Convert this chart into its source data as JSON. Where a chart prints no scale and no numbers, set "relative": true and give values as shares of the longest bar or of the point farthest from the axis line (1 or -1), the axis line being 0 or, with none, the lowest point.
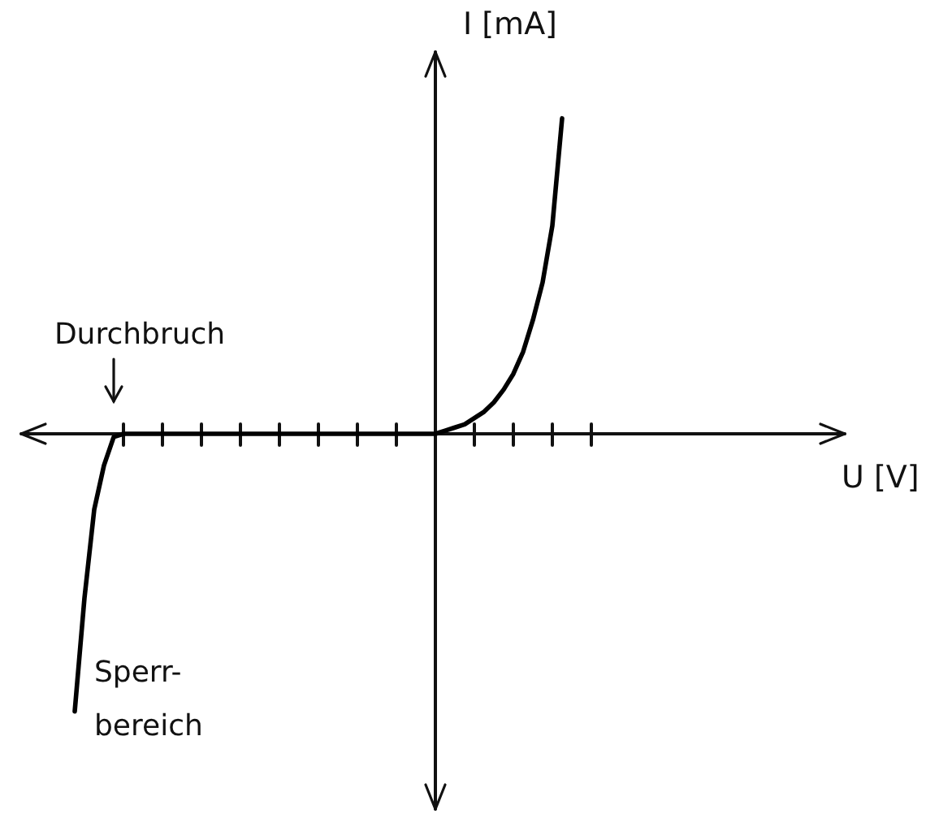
{
  "chart_data": {
    "type": "line",
    "xlabel": "U [V]",
    "ylabel": "I [mA]",
    "categories": [
      null,
      null,
      null,
      null,
      null,
      null,
      null,
      null,
      null,
      null,
      null,
      null,
      null,
      null,
      null,
      null,
      null,
      null,
      null,
      null,
      null,
      null,
      null,
      null,
      null,
      null,
      null,
      null,
      null,
      null,
      null,
      null,
      null,
      null,
      null,
      null,
      null,
      null,
      null,
      null,
      null,
      null,
      null,
      null,
      null,
      null,
      null,
      null,
      null,
      null,
      null,
      null,
      null,
      null,
      null,
      null,
      null,
      null,
      null,
      null,
      null,
      null,
      null,
      null,
      null,
      null,
      null,
      null,
      null,
      null,
      null,
      null,
      null,
      null,
      null,
      null,
      null,
      null,
      null,
      null,
      null,
      null,
      null,
      null,
      null
    ],
    "values": [
      null,
      null,
      null,
      null,
      null,
      -0.88,
      -0.52,
      -0.24,
      -0.1,
      -0.01,
      0,
      0,
      0,
      0,
      0,
      0,
      0,
      0,
      0,
      0,
      0,
      0,
      0,
      0,
      0,
      0,
      0,
      0,
      0,
      0,
      0,
      0,
      0,
      0,
      0,
      0,
      0,
      0,
      0,
      0,
      0,
      0,
      0,
      0.01,
      0.02,
      0.03,
      0.05,
      0.07,
      0.1,
      0.14,
      0.19,
      0.26,
      0.36,
      0.48,
      0.66,
      1,
      null,
      null,
      null,
      null,
      null,
      null,
      null,
      null,
      null,
      null,
      null,
      null,
      null,
      null,
      null,
      null,
      null,
      null,
      null,
      null,
      null,
      null,
      null,
      null,
      null,
      null,
      null,
      null,
      null
    ],
    "color": "#000000",
    "relative": true,
    "marker": "none",
    "line_style": "solid",
    "grid": false,
    "legend": false,
    "annotations": [
      "Durchbruch",
      "Sperr-\nbereich"
    ]
  }
}
